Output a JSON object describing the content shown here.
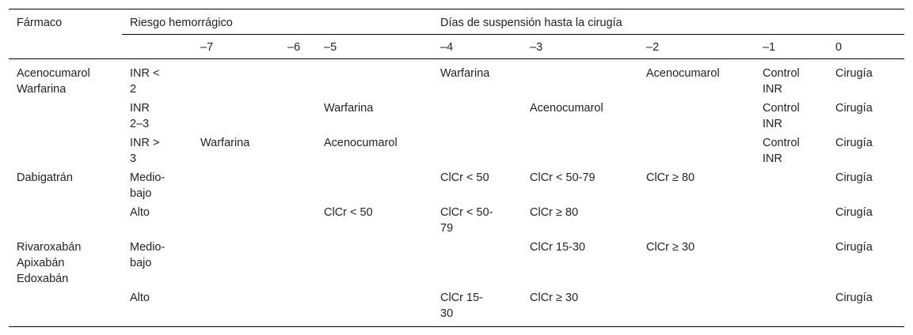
{
  "table": {
    "header": {
      "drug": "Fármaco",
      "risk": "Riesgo hemorrágico",
      "days": "Días de suspensión hasta la cirugía",
      "day_cols": [
        "–7",
        "–6",
        "–5",
        "–4",
        "–3",
        "–2",
        "–1",
        "0"
      ]
    },
    "rows": [
      {
        "drug": "Acenocumarol\nWarfarina",
        "risk": "INR <\n2",
        "cells": [
          "",
          "",
          "",
          "Warfarina",
          "",
          "Acenocumarol",
          "Control\nINR",
          "Cirugía"
        ]
      },
      {
        "drug": "",
        "risk": "INR\n2–3",
        "cells": [
          "",
          "",
          "Warfarina",
          "",
          "Acenocumarol",
          "",
          "Control\nINR",
          "Cirugía"
        ]
      },
      {
        "drug": "",
        "risk": "INR >\n3",
        "cells": [
          "Warfarina",
          "",
          "Acenocumarol",
          "",
          "",
          "",
          "Control\nINR",
          "Cirugía"
        ]
      },
      {
        "drug": "Dabigatrán",
        "risk": "Medio-\nbajo",
        "cells": [
          "",
          "",
          "",
          "ClCr < 50",
          "ClCr < 50-79",
          "ClCr ≥ 80",
          "",
          "Cirugía"
        ]
      },
      {
        "drug": "",
        "risk": "Alto",
        "cells": [
          "",
          "",
          "ClCr < 50",
          "ClCr < 50-\n79",
          "ClCr ≥ 80",
          "",
          "",
          "Cirugía"
        ]
      },
      {
        "drug": "Rivaroxabán\nApixabán\nEdoxabán",
        "risk": "Medio-\nbajo",
        "cells": [
          "",
          "",
          "",
          "",
          "ClCr 15-30",
          "ClCr ≥ 30",
          "",
          "Cirugía"
        ]
      },
      {
        "drug": "",
        "risk": "Alto",
        "cells": [
          "",
          "",
          "",
          "ClCr 15-\n30",
          "ClCr ≥ 30",
          "",
          "",
          "Cirugía"
        ]
      }
    ]
  }
}
